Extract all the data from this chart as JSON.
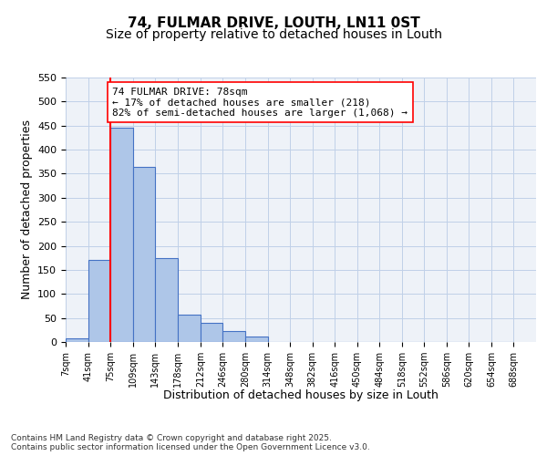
{
  "title": "74, FULMAR DRIVE, LOUTH, LN11 0ST",
  "subtitle": "Size of property relative to detached houses in Louth",
  "xlabel": "Distribution of detached houses by size in Louth",
  "ylabel": "Number of detached properties",
  "bar_values": [
    8,
    170,
    445,
    365,
    175,
    57,
    40,
    22,
    12,
    0,
    0,
    0,
    0,
    0,
    0,
    0,
    0,
    0,
    0,
    0
  ],
  "bin_labels": [
    "7sqm",
    "41sqm",
    "75sqm",
    "109sqm",
    "143sqm",
    "178sqm",
    "212sqm",
    "246sqm",
    "280sqm",
    "314sqm",
    "348sqm",
    "382sqm",
    "416sqm",
    "450sqm",
    "484sqm",
    "518sqm",
    "552sqm",
    "586sqm",
    "620sqm",
    "654sqm",
    "688sqm"
  ],
  "bin_edges": [
    7,
    41,
    75,
    109,
    143,
    178,
    212,
    246,
    280,
    314,
    348,
    382,
    416,
    450,
    484,
    518,
    552,
    586,
    620,
    654,
    688
  ],
  "bar_color": "#aec6e8",
  "bar_edge_color": "#4472c4",
  "grid_color": "#c0d0e8",
  "background_color": "#eef2f8",
  "ylim": [
    0,
    550
  ],
  "yticks": [
    0,
    50,
    100,
    150,
    200,
    250,
    300,
    350,
    400,
    450,
    500,
    550
  ],
  "vline_x": 75,
  "vline_color": "red",
  "annotation_text": "74 FULMAR DRIVE: 78sqm\n← 17% of detached houses are smaller (218)\n82% of semi-detached houses are larger (1,068) →",
  "annotation_box_color": "white",
  "annotation_box_edge_color": "red",
  "footer_text": "Contains HM Land Registry data © Crown copyright and database right 2025.\nContains public sector information licensed under the Open Government Licence v3.0.",
  "title_fontsize": 11,
  "subtitle_fontsize": 10,
  "label_fontsize": 9,
  "tick_fontsize": 7,
  "annotation_fontsize": 8
}
